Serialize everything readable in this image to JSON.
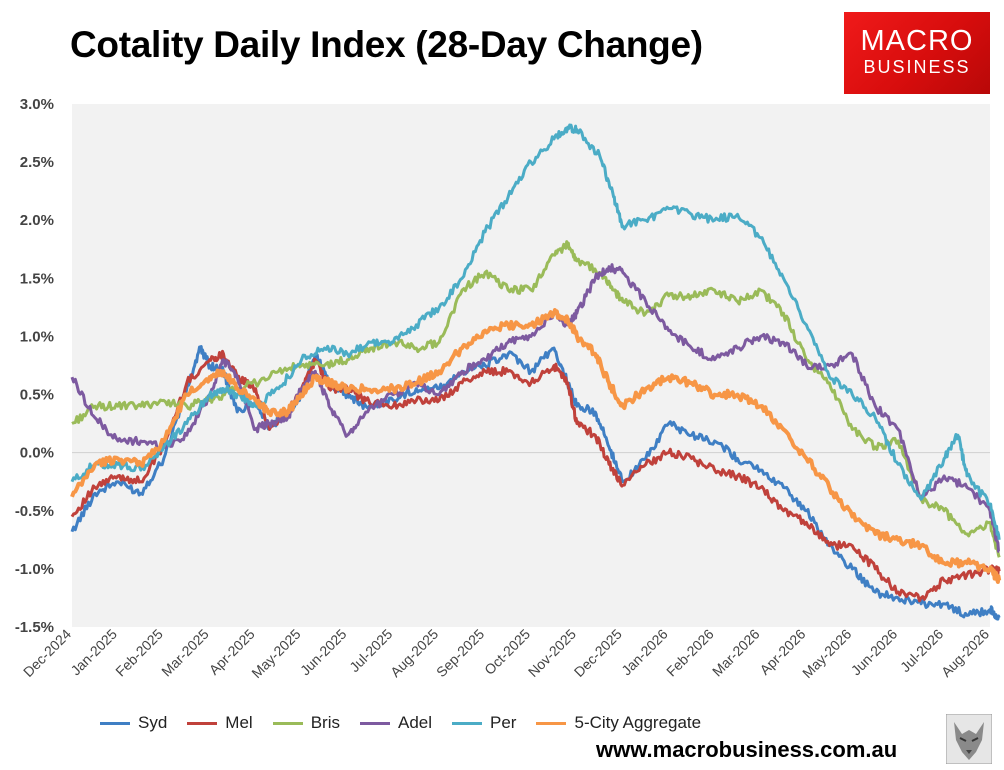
{
  "title": "Cotality Daily Index (28-Day Change)",
  "logo": {
    "line1": "MACRO",
    "line2": "BUSINESS"
  },
  "website": "www.macrobusiness.com.au",
  "colors": {
    "plot_bg": "#f2f2f2",
    "syd": "#3f7fc4",
    "mel": "#c0413b",
    "bris": "#9abb59",
    "adel": "#7d5aa0",
    "per": "#4bacc6",
    "agg": "#f79646"
  },
  "chart_data": {
    "type": "line",
    "x_ticks": [
      "Dec-2024",
      "Jan-2025",
      "Feb-2025",
      "Mar-2025",
      "Apr-2025",
      "May-2025",
      "Jun-2025",
      "Jul-2025",
      "Aug-2025",
      "Sep-2025",
      "Oct-2025",
      "Nov-2025",
      "Dec-2025",
      "Jan-2026",
      "Feb-2026",
      "Mar-2026",
      "Apr-2026",
      "May-2026",
      "Jun-2026",
      "Jul-2026",
      "Aug-2026"
    ],
    "x_range": [
      "Dec-2024",
      "Aug-2026"
    ],
    "y_ticks": [
      "3.0%",
      "2.5%",
      "2.0%",
      "1.5%",
      "1.0%",
      "0.5%",
      "0.0%",
      "-0.5%",
      "-1.0%",
      "-1.5%"
    ],
    "ylim": [
      -1.5,
      3.0
    ],
    "grid": false,
    "legend_position": "bottom",
    "series": [
      {
        "name": "Syd",
        "color_key": "syd",
        "width": 3,
        "points": [
          [
            0,
            -0.68
          ],
          [
            0.5,
            -0.35
          ],
          [
            1,
            -0.25
          ],
          [
            1.5,
            -0.35
          ],
          [
            2,
            -0.05
          ],
          [
            2.5,
            0.55
          ],
          [
            2.8,
            0.9
          ],
          [
            3,
            0.75
          ],
          [
            3.3,
            0.7
          ],
          [
            3.6,
            0.35
          ],
          [
            4,
            0.45
          ],
          [
            4.3,
            0.2
          ],
          [
            4.7,
            0.35
          ],
          [
            5,
            0.5
          ],
          [
            5.3,
            0.85
          ],
          [
            5.6,
            0.6
          ],
          [
            6,
            0.5
          ],
          [
            6.4,
            0.4
          ],
          [
            7,
            0.45
          ],
          [
            7.5,
            0.55
          ],
          [
            8,
            0.55
          ],
          [
            8.5,
            0.7
          ],
          [
            9,
            0.75
          ],
          [
            9.5,
            0.85
          ],
          [
            10,
            0.7
          ],
          [
            10.5,
            0.9
          ],
          [
            10.8,
            0.6
          ],
          [
            11,
            0.4
          ],
          [
            11.4,
            0.35
          ],
          [
            11.7,
            0.05
          ],
          [
            12,
            -0.25
          ],
          [
            12.5,
            -0.05
          ],
          [
            13,
            0.25
          ],
          [
            13.5,
            0.15
          ],
          [
            14,
            0.1
          ],
          [
            14.5,
            -0.05
          ],
          [
            15,
            -0.15
          ],
          [
            15.5,
            -0.3
          ],
          [
            16,
            -0.5
          ],
          [
            16.5,
            -0.8
          ],
          [
            17,
            -1.0
          ],
          [
            17.5,
            -1.2
          ],
          [
            18,
            -1.25
          ],
          [
            18.5,
            -1.3
          ],
          [
            19,
            -1.3
          ],
          [
            19.5,
            -1.4
          ],
          [
            20,
            -1.35
          ],
          [
            20.2,
            -1.42
          ]
        ]
      },
      {
        "name": "Mel",
        "color_key": "mel",
        "width": 3,
        "points": [
          [
            0,
            -0.55
          ],
          [
            0.5,
            -0.3
          ],
          [
            1,
            -0.2
          ],
          [
            1.5,
            -0.25
          ],
          [
            2,
            0.05
          ],
          [
            2.5,
            0.6
          ],
          [
            3,
            0.8
          ],
          [
            3.3,
            0.85
          ],
          [
            3.6,
            0.65
          ],
          [
            4,
            0.55
          ],
          [
            4.3,
            0.2
          ],
          [
            4.7,
            0.35
          ],
          [
            5,
            0.55
          ],
          [
            5.3,
            0.8
          ],
          [
            5.6,
            0.55
          ],
          [
            6,
            0.55
          ],
          [
            6.4,
            0.45
          ],
          [
            7,
            0.4
          ],
          [
            7.5,
            0.45
          ],
          [
            8,
            0.45
          ],
          [
            8.5,
            0.6
          ],
          [
            9,
            0.7
          ],
          [
            9.5,
            0.7
          ],
          [
            10,
            0.6
          ],
          [
            10.5,
            0.75
          ],
          [
            10.8,
            0.6
          ],
          [
            11,
            0.25
          ],
          [
            11.4,
            0.15
          ],
          [
            11.7,
            -0.1
          ],
          [
            12,
            -0.28
          ],
          [
            12.5,
            -0.1
          ],
          [
            13,
            0.0
          ],
          [
            13.5,
            -0.05
          ],
          [
            14,
            -0.15
          ],
          [
            14.5,
            -0.2
          ],
          [
            15,
            -0.3
          ],
          [
            15.5,
            -0.5
          ],
          [
            16,
            -0.6
          ],
          [
            16.5,
            -0.8
          ],
          [
            17,
            -0.8
          ],
          [
            17.5,
            -1.0
          ],
          [
            18,
            -1.2
          ],
          [
            18.5,
            -1.25
          ],
          [
            19,
            -1.1
          ],
          [
            19.5,
            -1.05
          ],
          [
            20,
            -1.0
          ],
          [
            20.2,
            -1.02
          ]
        ]
      },
      {
        "name": "Bris",
        "color_key": "bris",
        "width": 3,
        "points": [
          [
            0,
            0.25
          ],
          [
            0.5,
            0.4
          ],
          [
            1,
            0.4
          ],
          [
            1.5,
            0.4
          ],
          [
            2,
            0.45
          ],
          [
            2.5,
            0.4
          ],
          [
            3,
            0.45
          ],
          [
            3.3,
            0.5
          ],
          [
            3.6,
            0.55
          ],
          [
            4,
            0.6
          ],
          [
            4.5,
            0.7
          ],
          [
            5,
            0.75
          ],
          [
            5.5,
            0.75
          ],
          [
            6,
            0.8
          ],
          [
            6.5,
            0.9
          ],
          [
            7,
            0.95
          ],
          [
            7.5,
            0.9
          ],
          [
            8,
            0.95
          ],
          [
            8.5,
            1.4
          ],
          [
            9,
            1.55
          ],
          [
            9.5,
            1.4
          ],
          [
            10,
            1.4
          ],
          [
            10.5,
            1.7
          ],
          [
            10.8,
            1.8
          ],
          [
            11,
            1.65
          ],
          [
            11.5,
            1.55
          ],
          [
            11.8,
            1.4
          ],
          [
            12,
            1.3
          ],
          [
            12.5,
            1.2
          ],
          [
            13,
            1.35
          ],
          [
            13.5,
            1.35
          ],
          [
            14,
            1.4
          ],
          [
            14.5,
            1.3
          ],
          [
            15,
            1.4
          ],
          [
            15.5,
            1.2
          ],
          [
            16,
            0.8
          ],
          [
            16.5,
            0.6
          ],
          [
            17,
            0.2
          ],
          [
            17.5,
            0.05
          ],
          [
            18,
            0.1
          ],
          [
            18.5,
            -0.4
          ],
          [
            19,
            -0.5
          ],
          [
            19.5,
            -0.7
          ],
          [
            20,
            -0.6
          ],
          [
            20.2,
            -0.9
          ]
        ]
      },
      {
        "name": "Adel",
        "color_key": "adel",
        "width": 3,
        "points": [
          [
            0,
            0.65
          ],
          [
            0.5,
            0.3
          ],
          [
            1,
            0.1
          ],
          [
            1.5,
            0.1
          ],
          [
            2,
            0.05
          ],
          [
            2.5,
            0.15
          ],
          [
            3,
            0.5
          ],
          [
            3.3,
            0.8
          ],
          [
            3.6,
            0.65
          ],
          [
            4,
            0.2
          ],
          [
            4.3,
            0.25
          ],
          [
            4.7,
            0.3
          ],
          [
            5,
            0.55
          ],
          [
            5.3,
            0.7
          ],
          [
            5.6,
            0.4
          ],
          [
            6,
            0.15
          ],
          [
            6.4,
            0.35
          ],
          [
            7,
            0.5
          ],
          [
            7.5,
            0.6
          ],
          [
            8,
            0.5
          ],
          [
            8.5,
            0.7
          ],
          [
            9,
            0.8
          ],
          [
            9.5,
            0.95
          ],
          [
            10,
            1.0
          ],
          [
            10.5,
            1.2
          ],
          [
            10.8,
            1.1
          ],
          [
            11,
            1.2
          ],
          [
            11.4,
            1.5
          ],
          [
            11.7,
            1.6
          ],
          [
            12,
            1.55
          ],
          [
            12.5,
            1.3
          ],
          [
            13,
            1.05
          ],
          [
            13.5,
            0.9
          ],
          [
            14,
            0.8
          ],
          [
            14.5,
            0.9
          ],
          [
            15,
            1.0
          ],
          [
            15.5,
            0.95
          ],
          [
            16,
            0.75
          ],
          [
            16.5,
            0.75
          ],
          [
            17,
            0.85
          ],
          [
            17.5,
            0.4
          ],
          [
            18,
            0.2
          ],
          [
            18.5,
            -0.4
          ],
          [
            19,
            -0.2
          ],
          [
            19.5,
            -0.3
          ],
          [
            20,
            -0.5
          ],
          [
            20.2,
            -0.85
          ]
        ]
      },
      {
        "name": "Per",
        "color_key": "per",
        "width": 3,
        "points": [
          [
            0,
            -0.25
          ],
          [
            0.5,
            -0.1
          ],
          [
            1,
            -0.1
          ],
          [
            1.5,
            -0.15
          ],
          [
            2,
            0.05
          ],
          [
            2.5,
            0.25
          ],
          [
            3,
            0.5
          ],
          [
            3.3,
            0.55
          ],
          [
            3.6,
            0.5
          ],
          [
            4,
            0.4
          ],
          [
            4.5,
            0.55
          ],
          [
            5,
            0.8
          ],
          [
            5.5,
            0.9
          ],
          [
            6,
            0.85
          ],
          [
            6.5,
            0.95
          ],
          [
            7,
            0.95
          ],
          [
            7.5,
            1.1
          ],
          [
            8,
            1.25
          ],
          [
            8.5,
            1.5
          ],
          [
            9,
            1.9
          ],
          [
            9.5,
            2.2
          ],
          [
            10,
            2.5
          ],
          [
            10.5,
            2.7
          ],
          [
            10.8,
            2.8
          ],
          [
            11,
            2.78
          ],
          [
            11.5,
            2.55
          ],
          [
            11.8,
            2.2
          ],
          [
            12,
            1.95
          ],
          [
            12.5,
            2.0
          ],
          [
            13,
            2.1
          ],
          [
            13.5,
            2.05
          ],
          [
            14,
            2.0
          ],
          [
            14.5,
            2.05
          ],
          [
            15,
            1.85
          ],
          [
            15.5,
            1.5
          ],
          [
            16,
            1.1
          ],
          [
            16.5,
            0.65
          ],
          [
            17,
            0.5
          ],
          [
            17.5,
            0.3
          ],
          [
            18,
            -0.1
          ],
          [
            18.5,
            -0.4
          ],
          [
            19,
            -0.05
          ],
          [
            19.3,
            0.15
          ],
          [
            19.5,
            -0.2
          ],
          [
            20,
            -0.45
          ],
          [
            20.2,
            -0.75
          ]
        ]
      },
      {
        "name": "5-City Aggregate",
        "color_key": "agg",
        "width": 4,
        "points": [
          [
            0,
            -0.38
          ],
          [
            0.5,
            -0.1
          ],
          [
            1,
            -0.05
          ],
          [
            1.5,
            -0.1
          ],
          [
            2,
            0.1
          ],
          [
            2.5,
            0.5
          ],
          [
            3,
            0.65
          ],
          [
            3.3,
            0.7
          ],
          [
            3.6,
            0.55
          ],
          [
            4,
            0.45
          ],
          [
            4.3,
            0.35
          ],
          [
            4.7,
            0.35
          ],
          [
            5,
            0.5
          ],
          [
            5.3,
            0.65
          ],
          [
            5.6,
            0.6
          ],
          [
            6,
            0.55
          ],
          [
            6.4,
            0.55
          ],
          [
            7,
            0.55
          ],
          [
            7.5,
            0.6
          ],
          [
            8,
            0.7
          ],
          [
            8.5,
            0.9
          ],
          [
            9,
            1.05
          ],
          [
            9.5,
            1.1
          ],
          [
            10,
            1.1
          ],
          [
            10.5,
            1.2
          ],
          [
            10.8,
            1.15
          ],
          [
            11,
            1.0
          ],
          [
            11.4,
            0.85
          ],
          [
            11.7,
            0.6
          ],
          [
            12,
            0.4
          ],
          [
            12.5,
            0.55
          ],
          [
            13,
            0.65
          ],
          [
            13.5,
            0.6
          ],
          [
            14,
            0.5
          ],
          [
            14.5,
            0.5
          ],
          [
            15,
            0.4
          ],
          [
            15.5,
            0.2
          ],
          [
            16,
            -0.05
          ],
          [
            16.5,
            -0.3
          ],
          [
            17,
            -0.55
          ],
          [
            17.5,
            -0.7
          ],
          [
            18,
            -0.75
          ],
          [
            18.5,
            -0.8
          ],
          [
            19,
            -0.95
          ],
          [
            19.5,
            -0.95
          ],
          [
            20,
            -1.0
          ],
          [
            20.2,
            -1.1
          ]
        ]
      }
    ]
  }
}
